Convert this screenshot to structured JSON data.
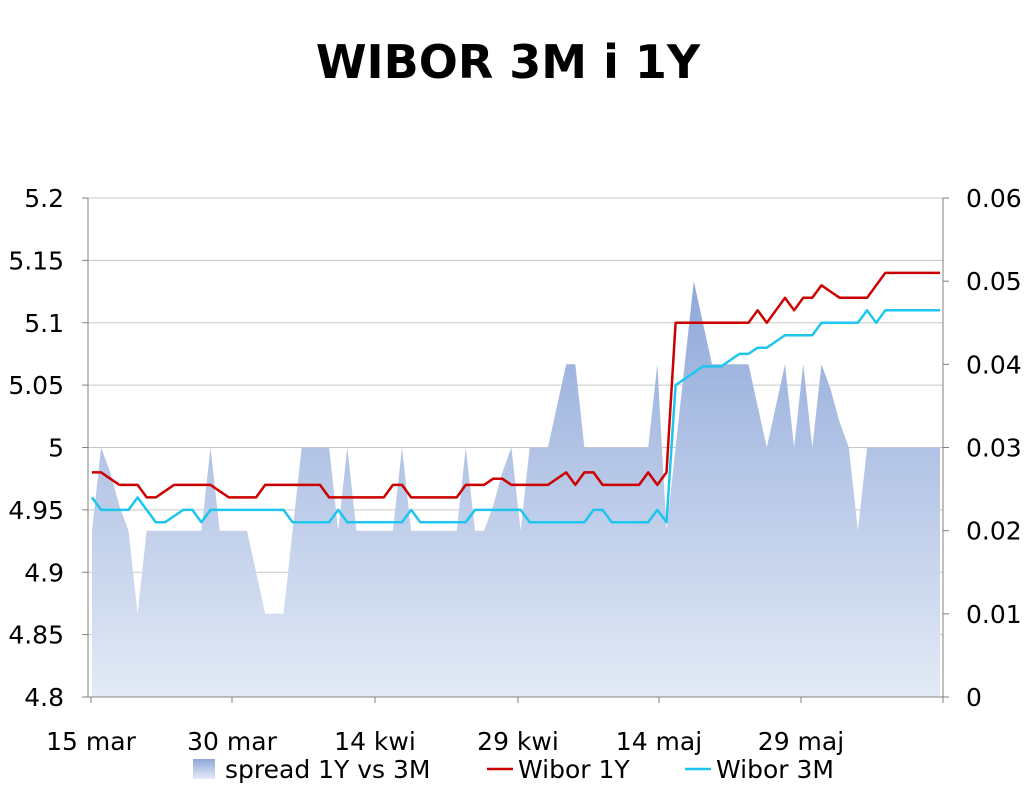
{
  "chart_data": {
    "type": "line",
    "title": "WIBOR 3M i 1Y",
    "x_ticks": [
      "15 mar",
      "30 mar",
      "14 kwi",
      "29 kwi",
      "14 maj",
      "29 maj"
    ],
    "y_left": {
      "ticks": [
        "5.2",
        "5.15",
        "5.1",
        "5.05",
        "5",
        "4.95",
        "4.9",
        "4.85",
        "4.8"
      ],
      "range": [
        4.8,
        5.2
      ]
    },
    "y_right": {
      "ticks": [
        "0.06",
        "0.05",
        "0.04",
        "0.03",
        "0.02",
        "0.01",
        "0"
      ],
      "range": [
        0,
        0.06
      ]
    },
    "grid": "horizontal",
    "legend_position": "bottom",
    "series": [
      {
        "name": "spread 1Y vs 3M",
        "type": "area",
        "axis": "right",
        "color": "#9FB4DE",
        "values": [
          0.02,
          0.03,
          0.027,
          0.023,
          0.02,
          0.01,
          0.02,
          0.02,
          0.02,
          0.02,
          0.02,
          0.02,
          0.02,
          0.03,
          0.02,
          0.02,
          0.02,
          0.02,
          0.015,
          0.01,
          0.01,
          0.01,
          0.02,
          0.03,
          0.03,
          0.03,
          0.03,
          0.02,
          0.03,
          0.02,
          0.02,
          0.02,
          0.02,
          0.02,
          0.03,
          0.02,
          0.02,
          0.02,
          0.02,
          0.02,
          0.02,
          0.03,
          0.02,
          0.02,
          0.023,
          0.027,
          0.03,
          0.02,
          0.03,
          0.03,
          0.03,
          0.035,
          0.04,
          0.04,
          0.03,
          0.03,
          0.03,
          0.03,
          0.03,
          0.03,
          0.03,
          0.03,
          0.04,
          0.02,
          0.03,
          0.04,
          0.05,
          0.045,
          0.04,
          0.04,
          0.04,
          0.04,
          0.04,
          0.035,
          0.03,
          0.035,
          0.04,
          0.03,
          0.04,
          0.03,
          0.04,
          0.037,
          0.033,
          0.03,
          0.02,
          0.03,
          0.03,
          0.03,
          0.03,
          0.03,
          0.03,
          0.03,
          0.03,
          0.03
        ]
      },
      {
        "name": "Wibor 1Y",
        "type": "line",
        "axis": "left",
        "color": "#CC0000",
        "values": [
          4.98,
          4.98,
          4.975,
          4.97,
          4.97,
          4.97,
          4.96,
          4.96,
          4.965,
          4.97,
          4.97,
          4.97,
          4.97,
          4.97,
          4.965,
          4.96,
          4.96,
          4.96,
          4.96,
          4.97,
          4.97,
          4.97,
          4.97,
          4.97,
          4.97,
          4.97,
          4.96,
          4.96,
          4.96,
          4.96,
          4.96,
          4.96,
          4.96,
          4.97,
          4.97,
          4.96,
          4.96,
          4.96,
          4.96,
          4.96,
          4.96,
          4.97,
          4.97,
          4.97,
          4.975,
          4.975,
          4.97,
          4.97,
          4.97,
          4.97,
          4.97,
          4.975,
          4.98,
          4.97,
          4.98,
          4.98,
          4.97,
          4.97,
          4.97,
          4.97,
          4.97,
          4.98,
          4.97,
          4.98,
          5.1,
          5.1,
          5.1,
          5.1,
          5.1,
          5.1,
          5.1,
          5.1,
          5.1,
          5.11,
          5.1,
          5.11,
          5.12,
          5.11,
          5.12,
          5.12,
          5.13,
          5.125,
          5.12,
          5.12,
          5.12,
          5.12,
          5.13,
          5.14,
          5.14,
          5.14,
          5.14,
          5.14,
          5.14,
          5.14
        ]
      },
      {
        "name": "Wibor 3M",
        "type": "line",
        "axis": "left",
        "color": "#1EC6EE",
        "values": [
          4.96,
          4.95,
          4.95,
          4.95,
          4.95,
          4.96,
          4.95,
          4.94,
          4.94,
          4.945,
          4.95,
          4.95,
          4.94,
          4.95,
          4.95,
          4.95,
          4.95,
          4.95,
          4.95,
          4.95,
          4.95,
          4.95,
          4.94,
          4.94,
          4.94,
          4.94,
          4.94,
          4.95,
          4.94,
          4.94,
          4.94,
          4.94,
          4.94,
          4.94,
          4.94,
          4.95,
          4.94,
          4.94,
          4.94,
          4.94,
          4.94,
          4.94,
          4.95,
          4.95,
          4.95,
          4.95,
          4.95,
          4.95,
          4.94,
          4.94,
          4.94,
          4.94,
          4.94,
          4.94,
          4.94,
          4.95,
          4.95,
          4.94,
          4.94,
          4.94,
          4.94,
          4.94,
          4.95,
          4.94,
          5.05,
          5.055,
          5.06,
          5.065,
          5.065,
          5.065,
          5.07,
          5.075,
          5.075,
          5.08,
          5.08,
          5.085,
          5.09,
          5.09,
          5.09,
          5.09,
          5.1,
          5.1,
          5.1,
          5.1,
          5.1,
          5.11,
          5.1,
          5.11,
          5.11,
          5.11,
          5.11,
          5.11,
          5.11,
          5.11
        ]
      }
    ]
  }
}
